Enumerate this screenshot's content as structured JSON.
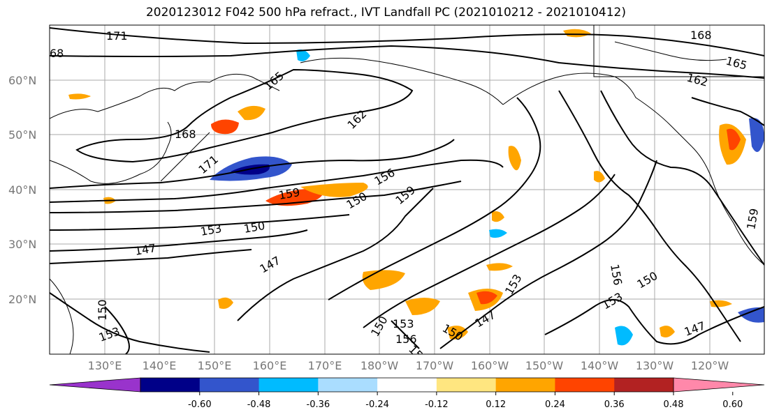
{
  "title": "2020123012 F042 500 hPa refract., IVT Landfall PC (2021010212 - 2021010412)",
  "lat_labels": [
    "60°N",
    "50°N",
    "40°N",
    "30°N",
    "20°N"
  ],
  "lon_labels": [
    "130°E",
    "140°E",
    "150°E",
    "160°E",
    "170°E",
    "180°W",
    "170°W",
    "160°W",
    "150°W",
    "140°W",
    "130°W",
    "120°W"
  ],
  "contour_labels": [
    "171",
    "68",
    "168",
    "165",
    "165",
    "162",
    "162",
    "168",
    "171",
    "159",
    "156",
    "150",
    "159",
    "153",
    "150",
    "147",
    "147",
    "150",
    "153",
    "150",
    "153",
    "156",
    "150",
    "153",
    "147",
    "150",
    "147",
    "159",
    "153",
    "156",
    "159"
  ],
  "colorbar": {
    "colors": [
      "#9933cc",
      "#000088",
      "#3355cc",
      "#00bbff",
      "#aaddff",
      "#ffffff",
      "#ffe680",
      "#ffa500",
      "#ff4400",
      "#b22222",
      "#ff88aa"
    ],
    "tick_labels": [
      "-0.60",
      "-0.48",
      "-0.36",
      "-0.24",
      "-0.12",
      "0.12",
      "0.24",
      "0.36",
      "0.48",
      "0.60"
    ]
  }
}
